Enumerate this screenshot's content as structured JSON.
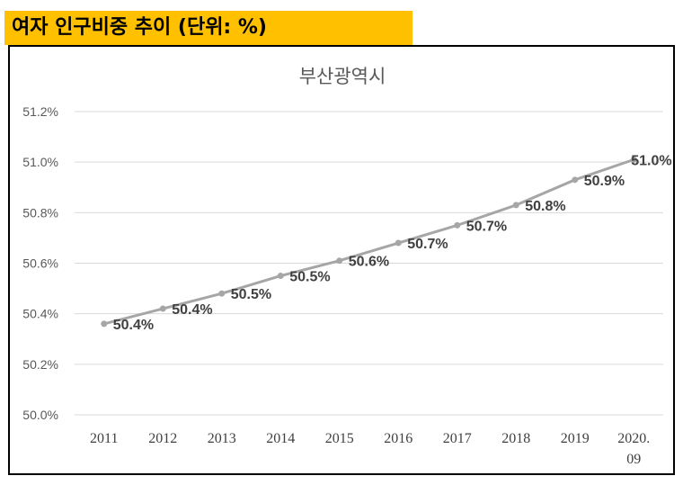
{
  "header": {
    "title": "여자 인구비중 추이 (단위: %)"
  },
  "colors": {
    "banner": "#ffc000",
    "line": "#a6a6a6",
    "grid": "#d9d9d9"
  },
  "chart_data": {
    "type": "line",
    "title": "부산광역시",
    "xlabel": "",
    "ylabel": "",
    "categories": [
      "2011",
      "2012",
      "2013",
      "2014",
      "2015",
      "2016",
      "2017",
      "2018",
      "2019",
      "2020.\n09"
    ],
    "series": [
      {
        "name": "여자 인구비중",
        "values": [
          50.36,
          50.42,
          50.48,
          50.55,
          50.61,
          50.68,
          50.75,
          50.83,
          50.93,
          51.01
        ],
        "labels": [
          "50.4%",
          "50.4%",
          "50.5%",
          "50.5%",
          "50.6%",
          "50.7%",
          "50.7%",
          "50.8%",
          "50.9%",
          "51.0%"
        ]
      }
    ],
    "ylim": [
      50.0,
      51.2
    ],
    "yticks": [
      50.0,
      50.2,
      50.4,
      50.6,
      50.8,
      51.0,
      51.2
    ],
    "ytick_labels": [
      "50.0%",
      "50.2%",
      "50.4%",
      "50.6%",
      "50.8%",
      "51.0%",
      "51.2%"
    ],
    "grid": true,
    "legend": "none"
  }
}
